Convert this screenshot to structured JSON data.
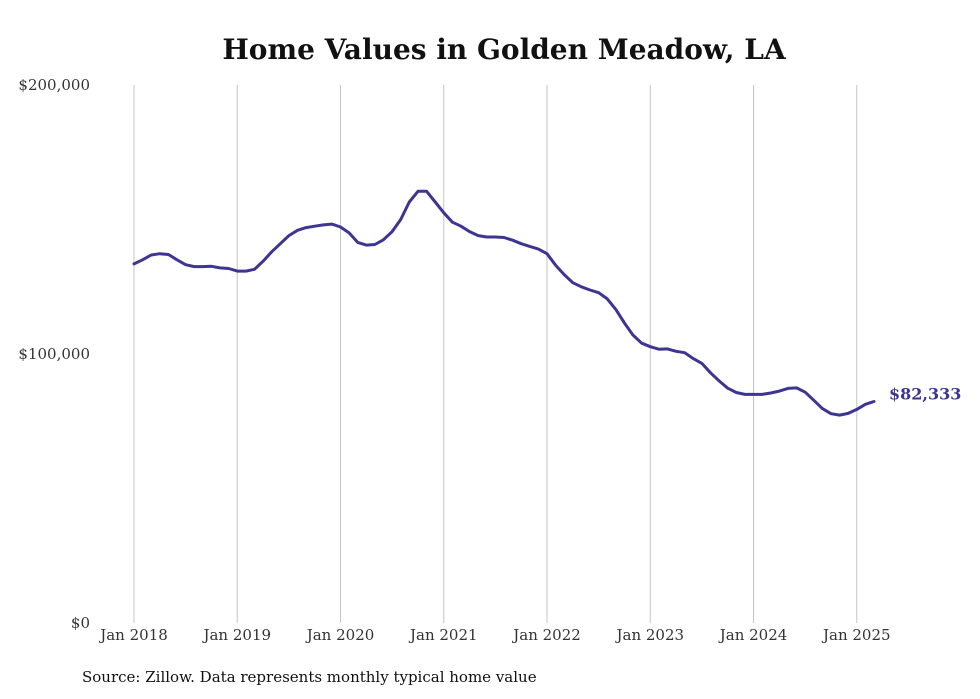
{
  "chart_data": {
    "type": "line",
    "title": "Home Values in Golden Meadow, LA",
    "xlabel": "",
    "ylabel": "",
    "ylim": [
      0,
      200000
    ],
    "xlim": [
      "2018-01",
      "2025-03"
    ],
    "y_ticks": [
      {
        "value": 200000,
        "label": "$200,000"
      },
      {
        "value": 100000,
        "label": "$100,000"
      },
      {
        "value": 0,
        "label": "$0"
      }
    ],
    "x_ticks": [
      {
        "value": "2018-01",
        "label": "Jan 2018"
      },
      {
        "value": "2019-01",
        "label": "Jan 2019"
      },
      {
        "value": "2020-01",
        "label": "Jan 2020"
      },
      {
        "value": "2021-01",
        "label": "Jan 2021"
      },
      {
        "value": "2022-01",
        "label": "Jan 2022"
      },
      {
        "value": "2023-01",
        "label": "Jan 2023"
      },
      {
        "value": "2024-01",
        "label": "Jan 2024"
      },
      {
        "value": "2025-01",
        "label": "Jan 2025"
      }
    ],
    "vertical_grid": true,
    "line_color": "#3d3591",
    "end_label": "$82,333",
    "series": [
      {
        "x": [
          "2018-01",
          "2018-02",
          "2018-03",
          "2018-04",
          "2018-05",
          "2018-06",
          "2018-07",
          "2018-08",
          "2018-09",
          "2018-10",
          "2018-11",
          "2018-12",
          "2019-01",
          "2019-02",
          "2019-03",
          "2019-04",
          "2019-05",
          "2019-06",
          "2019-07",
          "2019-08",
          "2019-09",
          "2019-10",
          "2019-11",
          "2019-12",
          "2020-01",
          "2020-02",
          "2020-03",
          "2020-04",
          "2020-05",
          "2020-06",
          "2020-07",
          "2020-08",
          "2020-09",
          "2020-10",
          "2020-11",
          "2020-12",
          "2021-01",
          "2021-02",
          "2021-03",
          "2021-04",
          "2021-05",
          "2021-06",
          "2021-07",
          "2021-08",
          "2021-09",
          "2021-10",
          "2021-11",
          "2021-12",
          "2022-01",
          "2022-02",
          "2022-03",
          "2022-04",
          "2022-05",
          "2022-06",
          "2022-07",
          "2022-08",
          "2022-09",
          "2022-10",
          "2022-11",
          "2022-12",
          "2023-01",
          "2023-02",
          "2023-03",
          "2023-04",
          "2023-05",
          "2023-06",
          "2023-07",
          "2023-08",
          "2023-09",
          "2023-10",
          "2023-11",
          "2023-12",
          "2024-01",
          "2024-02",
          "2024-03",
          "2024-04",
          "2024-05",
          "2024-06",
          "2024-07",
          "2024-08",
          "2024-09",
          "2024-10",
          "2024-11",
          "2024-12",
          "2025-01",
          "2025-02",
          "2025-03"
        ],
        "values": [
          133500,
          135000,
          136800,
          137300,
          137000,
          135000,
          133200,
          132500,
          132500,
          132600,
          132000,
          131800,
          130800,
          130800,
          131500,
          134500,
          138000,
          141000,
          144000,
          146000,
          147000,
          147500,
          148000,
          148300,
          147200,
          145000,
          141500,
          140500,
          140700,
          142500,
          145500,
          150000,
          156500,
          160500,
          160500,
          156500,
          152500,
          149000,
          147500,
          145500,
          144000,
          143500,
          143500,
          143300,
          142300,
          141000,
          140000,
          139000,
          137300,
          133000,
          129500,
          126500,
          125000,
          123800,
          122800,
          120500,
          116500,
          111500,
          107000,
          104000,
          102700,
          101800,
          101900,
          101000,
          100500,
          98300,
          96500,
          93000,
          90000,
          87300,
          85700,
          85000,
          85000,
          85000,
          85500,
          86200,
          87200,
          87400,
          85800,
          82800,
          79700,
          77800,
          77300,
          77900,
          79400,
          81300,
          82333
        ]
      }
    ]
  },
  "footer": {
    "source": "Source: Zillow. Data represents monthly typical home value"
  }
}
